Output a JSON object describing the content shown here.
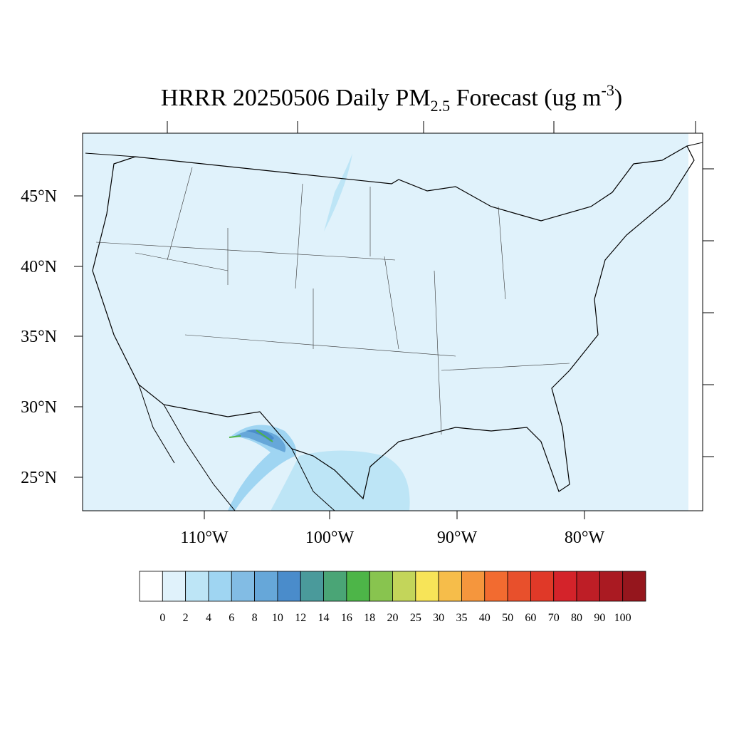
{
  "header": {
    "title_main": "HRRR 20250506 Daily PM",
    "title_sub": "2.5",
    "title_rest": " Forecast (ug m",
    "title_sup": "-3",
    "title_end": ")"
  },
  "map": {
    "lat_labels": [
      "45°N",
      "40°N",
      "35°N",
      "30°N",
      "25°N"
    ],
    "lon_labels": [
      "110°W",
      "100°W",
      "90°W",
      "80°W"
    ]
  },
  "colorbar": {
    "levels": [
      0,
      2,
      4,
      6,
      8,
      10,
      12,
      14,
      16,
      18,
      20,
      25,
      30,
      35,
      40,
      50,
      60,
      70,
      80,
      90,
      100
    ],
    "colors": [
      "#ffffff",
      "#e0f2fb",
      "#bde5f6",
      "#9fd5f2",
      "#82bce4",
      "#66a7d9",
      "#4a8ccb",
      "#4a9a9b",
      "#4aa576",
      "#4db548",
      "#88c44f",
      "#c3d55a",
      "#f7e458",
      "#f6bd4a",
      "#f5963d",
      "#f26b30",
      "#e8502c",
      "#e03928",
      "#d4232a",
      "#be1e26",
      "#aa1a22",
      "#95161d"
    ]
  }
}
